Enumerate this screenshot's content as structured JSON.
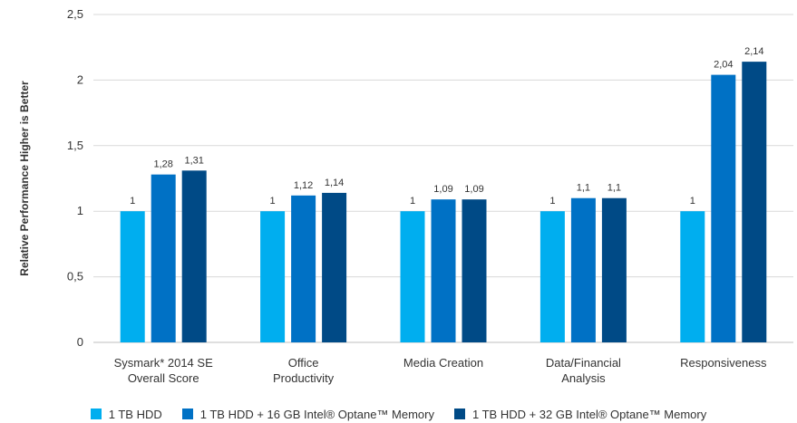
{
  "chart_data": {
    "type": "bar",
    "categories": [
      [
        "Sysmark* 2014 SE",
        "Overall Score"
      ],
      [
        "Office",
        "Productivity"
      ],
      [
        "Media Creation"
      ],
      [
        "Data/Financial",
        "Analysis"
      ],
      [
        "Responsiveness"
      ]
    ],
    "series": [
      {
        "name": "1 TB HDD",
        "color": "#00aeef",
        "values": [
          1,
          1,
          1,
          1,
          1
        ],
        "labels": [
          "1",
          "1",
          "1",
          "1",
          "1"
        ]
      },
      {
        "name": "1 TB HDD + 16 GB Intel® Optane™ Memory",
        "color": "#0071c5",
        "values": [
          1.28,
          1.12,
          1.09,
          1.1,
          2.04
        ],
        "labels": [
          "1,28",
          "1,12",
          "1,09",
          "1,1",
          "2,04"
        ]
      },
      {
        "name": "1 TB HDD + 32 GB Intel® Optane™ Memory",
        "color": "#004a86",
        "values": [
          1.31,
          1.14,
          1.09,
          1.1,
          2.14
        ],
        "labels": [
          "1,31",
          "1,14",
          "1,09",
          "1,1",
          "2,14"
        ]
      }
    ],
    "ylabel": "Relative Performance Higher is Better",
    "ylim": [
      0,
      2.5
    ],
    "yticks": [
      0,
      0.5,
      1,
      1.5,
      2,
      2.5
    ],
    "ytick_labels": [
      "0",
      "0,5",
      "1",
      "1,5",
      "2",
      "2,5"
    ],
    "grid": true,
    "legend_position": "bottom"
  }
}
